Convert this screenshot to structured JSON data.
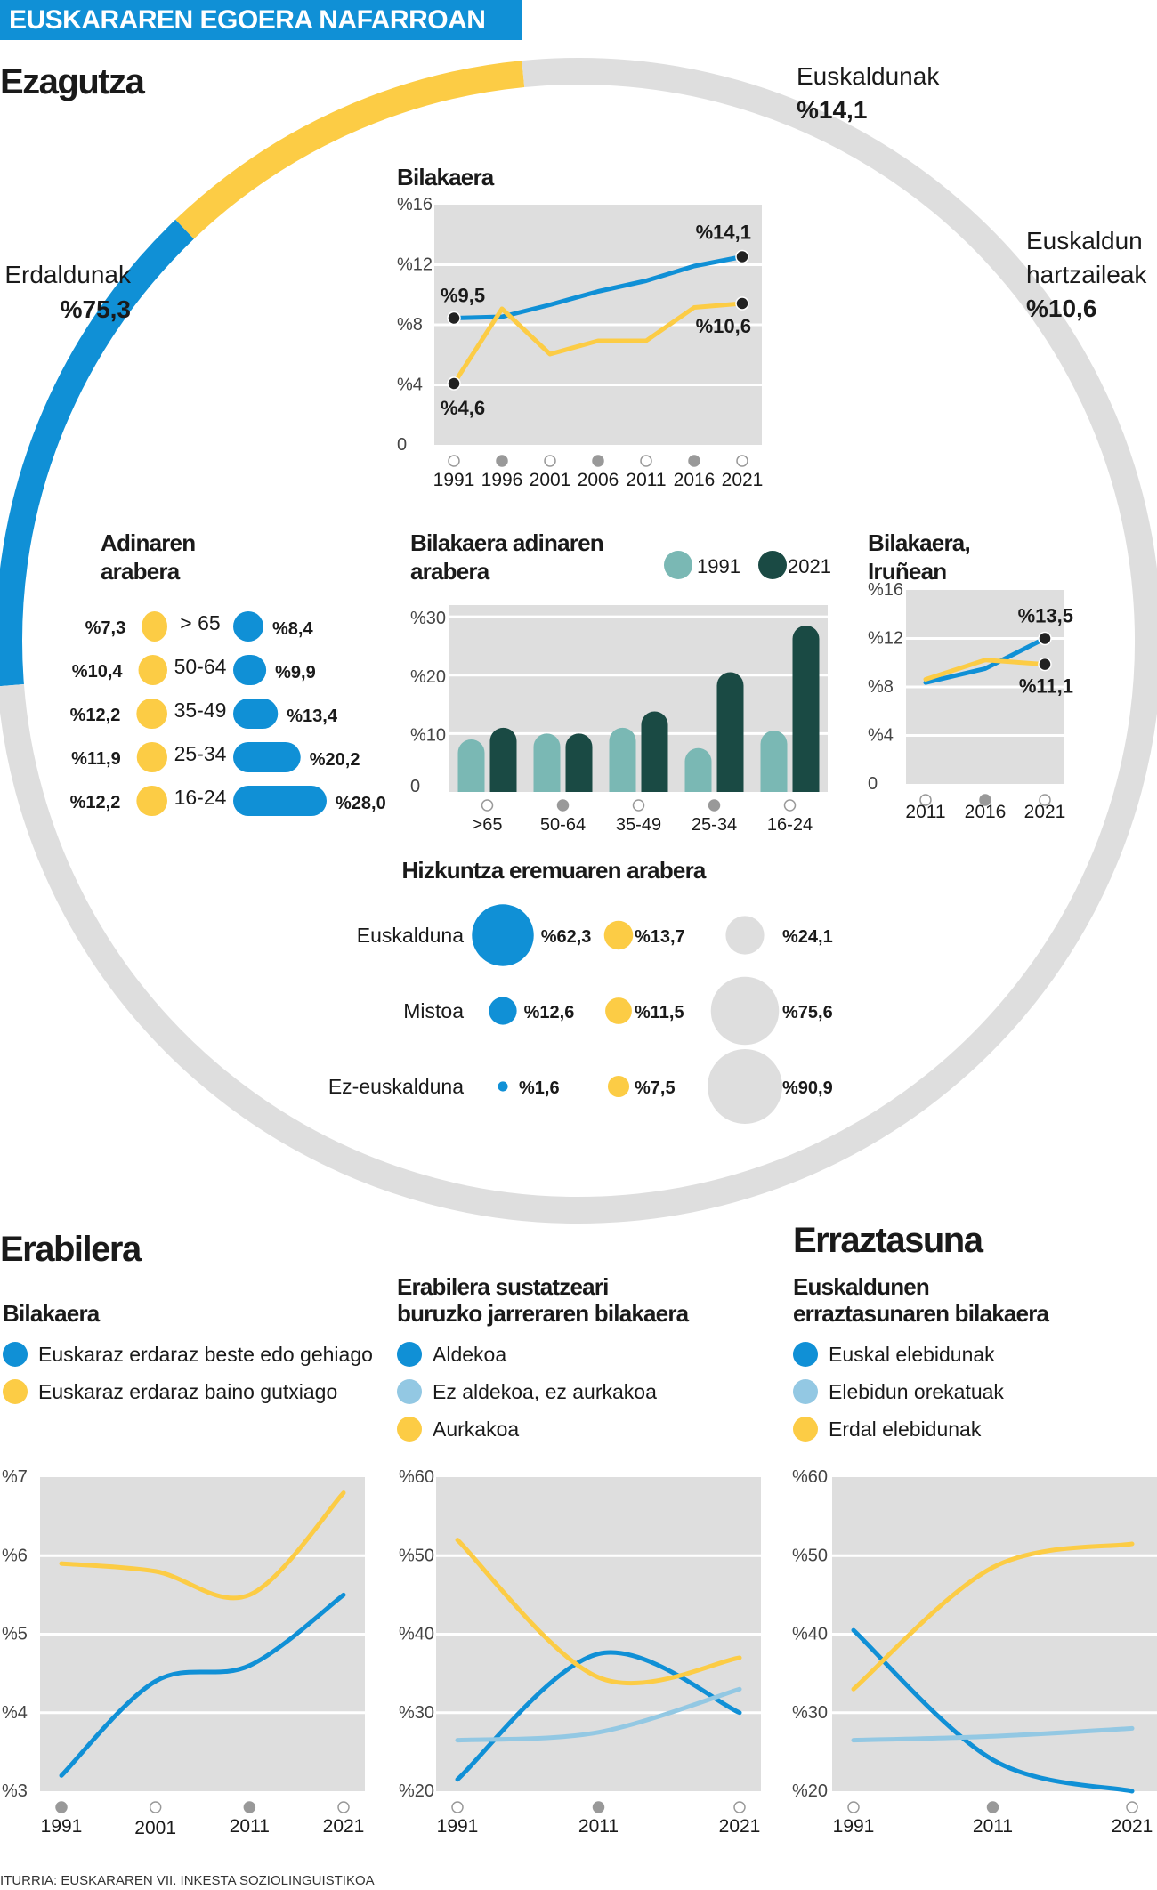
{
  "header_banner": "EUSKARAREN EGOERA NAFARROAN",
  "colors": {
    "blue": "#1090d6",
    "yellow": "#fccc45",
    "gray": "#dedede",
    "teal": "#7ab8b4",
    "dark_teal": "#1a4a44",
    "light_blue": "#93c8e3",
    "banner": "#1090d6"
  },
  "ezagutza": {
    "title": "Ezagutza",
    "segments": [
      {
        "name": "Euskaldunak",
        "value": 14.1,
        "label": "%14,1"
      },
      {
        "name": "Euskaldun hartzaileak",
        "name_lines": [
          "Euskaldun",
          "hartzaileak"
        ],
        "value": 10.6,
        "label": "%10,6"
      },
      {
        "name": "Erdaldunak",
        "value": 75.3,
        "label": "%75,3"
      }
    ]
  },
  "chart_data": [
    {
      "id": "bilakaera",
      "type": "line",
      "title": "Bilakaera",
      "categories": [
        "1991",
        "1996",
        "2001",
        "2006",
        "2011",
        "2016",
        "2021"
      ],
      "yticks": [
        "0",
        "%4",
        "%8",
        "%12",
        "%16"
      ],
      "ylim": [
        0,
        18
      ],
      "series": [
        {
          "color": "blue",
          "values": [
            9.5,
            9.6,
            10.5,
            11.5,
            12.3,
            13.4,
            14.1
          ]
        },
        {
          "color": "yellow",
          "values": [
            4.6,
            10.2,
            6.8,
            7.8,
            7.8,
            10.3,
            10.6
          ]
        }
      ],
      "annotations": [
        "%9,5",
        "%4,6",
        "%14,1",
        "%10,6"
      ]
    },
    {
      "id": "adinaren",
      "type": "bar",
      "title": "Adinaren arabera",
      "categories": [
        "> 65",
        "50-64",
        "35-49",
        "25-34",
        "16-24"
      ],
      "series": [
        {
          "color": "yellow",
          "values": [
            7.3,
            10.4,
            12.2,
            11.9,
            12.2
          ],
          "labels": [
            "%7,3",
            "%10,4",
            "%12,2",
            "%11,9",
            "%12,2"
          ]
        },
        {
          "color": "blue",
          "values": [
            8.4,
            9.9,
            13.4,
            20.2,
            28.0
          ],
          "labels": [
            "%8,4",
            "%9,9",
            "%13,4",
            "%20,2",
            "%28,0"
          ]
        }
      ]
    },
    {
      "id": "bilakaera_adin",
      "type": "bar",
      "title": "Bilakaera adinaren arabera",
      "legend": [
        "1991",
        "2021"
      ],
      "categories": [
        ">65",
        "50-64",
        "35-49",
        "25-34",
        "16-24"
      ],
      "yticks": [
        "0",
        "%10",
        "%20",
        "%30"
      ],
      "ylim": [
        0,
        32
      ],
      "series": [
        {
          "name": "1991",
          "color": "teal",
          "values": [
            9.0,
            10.0,
            11.0,
            7.5,
            10.5
          ]
        },
        {
          "name": "2021",
          "color": "dark_teal",
          "values": [
            11.0,
            10.0,
            13.8,
            20.5,
            28.5
          ]
        }
      ]
    },
    {
      "id": "iruna",
      "type": "line",
      "title": "Bilakaera, Iruñean",
      "categories": [
        "2011",
        "2016",
        "2021"
      ],
      "yticks": [
        "0",
        "%4",
        "%8",
        "%12",
        "%16"
      ],
      "ylim": [
        0,
        18
      ],
      "series": [
        {
          "color": "blue",
          "values": [
            9.4,
            10.7,
            13.5
          ]
        },
        {
          "color": "yellow",
          "values": [
            9.7,
            11.5,
            11.1
          ]
        }
      ],
      "annotations": [
        "%13,5",
        "%11,1"
      ]
    },
    {
      "id": "hizkuntza",
      "type": "scatter",
      "title": "Hizkuntza eremuaren arabera",
      "rows": [
        "Euskalduna",
        "Mistoa",
        "Ez-euskalduna"
      ],
      "series": [
        {
          "color": "blue",
          "values": [
            62.3,
            12.6,
            1.6
          ],
          "labels": [
            "%62,3",
            "%12,6",
            "%1,6"
          ]
        },
        {
          "color": "yellow",
          "values": [
            13.7,
            11.5,
            7.5
          ],
          "labels": [
            "%13,7",
            "%11,5",
            "%7,5"
          ]
        },
        {
          "color": "gray",
          "values": [
            24.1,
            75.6,
            90.9
          ],
          "labels": [
            "%24,1",
            "%75,6",
            "%90,9"
          ]
        }
      ]
    },
    {
      "id": "erabilera",
      "type": "line",
      "section": "Erabilera",
      "title": "Bilakaera",
      "categories": [
        "1991",
        "2001",
        "2011",
        "2021"
      ],
      "yticks": [
        "%3",
        "%4",
        "%5",
        "%6",
        "%7"
      ],
      "ylim": [
        3,
        7
      ],
      "series": [
        {
          "name": "Euskaraz erdaraz beste edo gehiago",
          "color": "blue",
          "values": [
            3.2,
            4.4,
            4.6,
            5.5
          ]
        },
        {
          "name": "Euskaraz erdaraz baino gutxiago",
          "color": "yellow",
          "values": [
            5.9,
            5.8,
            5.5,
            6.8
          ]
        }
      ]
    },
    {
      "id": "jarrera",
      "type": "line",
      "title": "Erabilera sustatzeari buruzko jarreraren bilakaera",
      "title_lines": [
        "Erabilera sustatzeari",
        "buruzko jarreraren bilakaera"
      ],
      "categories": [
        "1991",
        "2011",
        "2021"
      ],
      "yticks": [
        "%20",
        "%30",
        "%40",
        "%50",
        "%60"
      ],
      "ylim": [
        20,
        60
      ],
      "series": [
        {
          "name": "Aldekoa",
          "color": "blue",
          "values": [
            21.5,
            37.5,
            30.0
          ]
        },
        {
          "name": "Ez aldekoa, ez aurkakoa",
          "color": "light_blue",
          "values": [
            26.5,
            27.5,
            33.0
          ]
        },
        {
          "name": "Aurkakoa",
          "color": "yellow",
          "values": [
            52.0,
            34.5,
            37.0
          ]
        }
      ]
    },
    {
      "id": "erraztasuna",
      "type": "line",
      "section": "Erraztasuna",
      "title": "Euskaldunen erraztasunaren bilakaera",
      "title_lines": [
        "Euskaldunen",
        "erraztasunaren bilakaera"
      ],
      "categories": [
        "1991",
        "2011",
        "2021"
      ],
      "yticks": [
        "%20",
        "%30",
        "%40",
        "%50",
        "%60"
      ],
      "ylim": [
        20,
        60
      ],
      "series": [
        {
          "name": "Euskal elebidunak",
          "color": "blue",
          "values": [
            40.5,
            24.0,
            20.0
          ]
        },
        {
          "name": "Elebidun orekatuak",
          "color": "light_blue",
          "values": [
            26.5,
            27.0,
            28.0
          ]
        },
        {
          "name": "Erdal elebidunak",
          "color": "yellow",
          "values": [
            33.0,
            48.5,
            51.5
          ]
        }
      ]
    }
  ],
  "source": "ITURRIA: EUSKARAREN VII. INKESTA SOZIOLINGUISTIKOA"
}
